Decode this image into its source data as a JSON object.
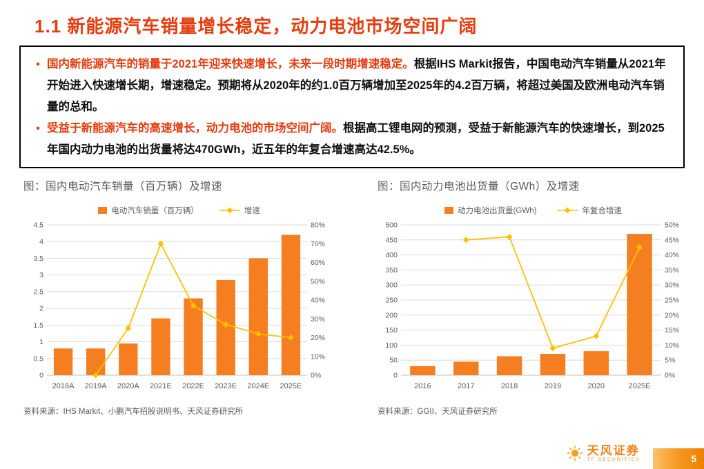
{
  "page": {
    "title": "1.1 新能源汽车销量增长稳定，动力电池市场空间广阔",
    "page_number": "5",
    "brand": {
      "name": "天风证券",
      "subtitle": "TF SECURITIES"
    }
  },
  "summary_box": {
    "marker": "•",
    "bullets": [
      {
        "highlight": "国内新能源汽车的销量于2021年迎来快速增长，未来一段时期增速稳定。",
        "body": "根据IHS Markit报告，中国电动汽车销量从2021年开始进入快速增长期，增速稳定。预期将从2020年的约1.0百万辆增加至2025年的4.2百万辆，将超过美国及欧洲电动汽车销量的总和。"
      },
      {
        "highlight": "受益于新能源汽车的高速增长，动力电池的市场空间广阔。",
        "body": "根据高工锂电网的预测，受益于新能源汽车的快速增长，到2025年国内动力电池的出货量将达470GWh，近五年的年复合增速高达42.5%。"
      }
    ]
  },
  "colors": {
    "accent": "#E63C0E",
    "bar": "#F57E20",
    "line": "#FFC000",
    "grid": "#DBDBDB",
    "axis_line": "#BFBFBF",
    "axis_text": "#595959"
  },
  "chart_data": [
    {
      "type": "bar",
      "title": "图：国内电动汽车销量（百万辆）及增速",
      "categories": [
        "2018A",
        "2019A",
        "2020A",
        "2021E",
        "2022E",
        "2023E",
        "2024E",
        "2025E"
      ],
      "series": [
        {
          "name": "电动汽车销量（百万辆）",
          "kind": "bar",
          "axis": "left",
          "values": [
            0.8,
            0.8,
            0.95,
            1.7,
            2.3,
            2.85,
            3.5,
            4.2
          ]
        },
        {
          "name": "增速",
          "kind": "line",
          "axis": "right",
          "values": [
            null,
            0,
            25,
            70,
            37,
            27,
            22,
            20
          ]
        }
      ],
      "left_axis": {
        "min": 0,
        "max": 4.5,
        "step": 0.5,
        "labels": [
          "0",
          "0.5",
          "1",
          "1.5",
          "2",
          "2.5",
          "3",
          "3.5",
          "4",
          "4.5"
        ]
      },
      "right_axis": {
        "min": 0,
        "max": 80,
        "step": 10,
        "labels": [
          "0%",
          "10%",
          "20%",
          "30%",
          "40%",
          "50%",
          "60%",
          "70%",
          "80%"
        ]
      },
      "grid": true,
      "legend_position": "top",
      "source": "资料来源：IHS Markit、小鹏汽车招股说明书、天风证券研究所"
    },
    {
      "type": "bar",
      "title": "图：国内动力电池出货量（GWh）及增速",
      "categories": [
        "2016",
        "2017",
        "2018",
        "2019",
        "2020",
        "2025E"
      ],
      "series": [
        {
          "name": "动力电池出货量(GWh)",
          "kind": "bar",
          "axis": "left",
          "values": [
            30,
            45,
            63,
            71,
            80,
            470
          ]
        },
        {
          "name": "年复合增速",
          "kind": "line",
          "axis": "right",
          "values": [
            null,
            45,
            46,
            9,
            13,
            42.5
          ]
        }
      ],
      "left_axis": {
        "min": 0,
        "max": 500,
        "step": 50,
        "labels": [
          "0",
          "50",
          "100",
          "150",
          "200",
          "250",
          "300",
          "350",
          "400",
          "450",
          "500"
        ]
      },
      "right_axis": {
        "min": 0,
        "max": 50,
        "step": 5,
        "labels": [
          "0%",
          "5%",
          "10%",
          "15%",
          "20%",
          "25%",
          "30%",
          "35%",
          "40%",
          "45%",
          "50%"
        ]
      },
      "grid": true,
      "legend_position": "top",
      "source": "资料来源：GGII、天风证券研究所"
    }
  ]
}
